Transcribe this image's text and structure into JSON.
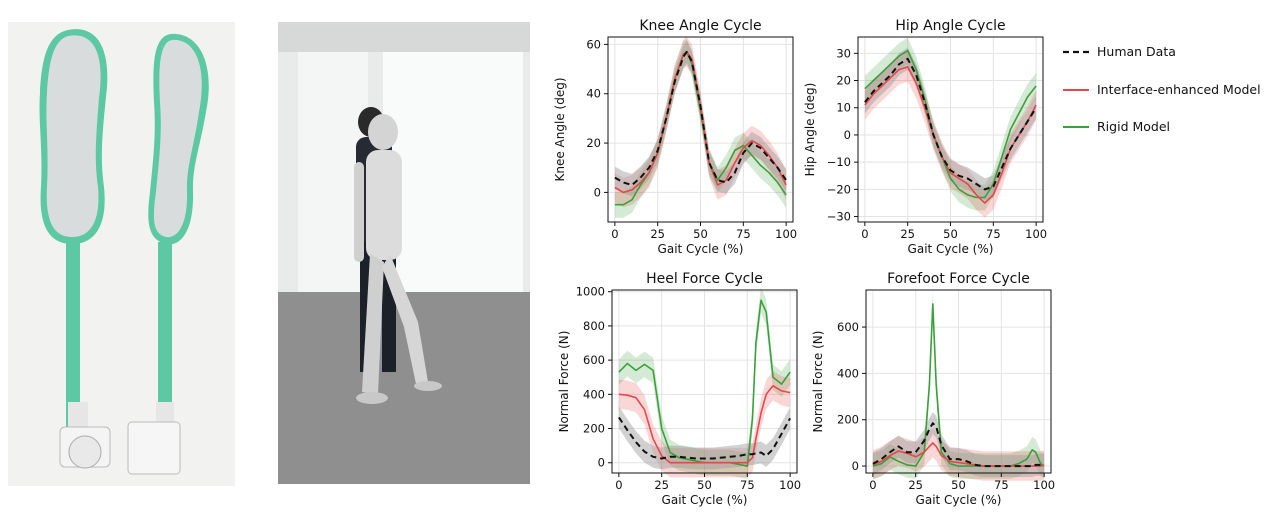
{
  "legend": {
    "entries": [
      {
        "label": "Human Data",
        "color": "#111111",
        "dash": true
      },
      {
        "label": "Interface-enhanced Model",
        "color": "#e8474a",
        "dash": false
      },
      {
        "label": "Rigid Model",
        "color": "#3aa13a",
        "dash": false
      }
    ]
  },
  "photos": {
    "insoles": "Pressure-sensing insoles",
    "walking": "Human walking with overlaid musculoskeletal model"
  },
  "chart_data": [
    {
      "type": "line",
      "title": "Knee Angle Cycle",
      "xlabel": "Gait Cycle (%)",
      "ylabel": "Knee Angle (deg)",
      "xlim": [
        -4,
        104
      ],
      "ylim": [
        -12,
        63
      ],
      "xticks": [
        0,
        25,
        50,
        75,
        100
      ],
      "yticks": [
        0,
        20,
        40,
        60
      ],
      "x": [
        0,
        5,
        10,
        15,
        20,
        25,
        30,
        35,
        40,
        42,
        45,
        50,
        55,
        60,
        65,
        70,
        75,
        80,
        85,
        90,
        95,
        100
      ],
      "series": [
        {
          "name": "Human Data",
          "values": [
            6,
            4,
            3,
            6,
            10,
            17,
            30,
            45,
            55,
            57,
            53,
            35,
            12,
            5,
            4,
            8,
            16,
            20,
            18,
            14,
            10,
            5
          ]
        },
        {
          "name": "Interface-enhanced Model",
          "values": [
            2,
            0,
            1,
            4,
            8,
            16,
            30,
            46,
            56,
            57,
            54,
            35,
            12,
            3,
            5,
            12,
            18,
            21,
            19,
            15,
            10,
            3
          ]
        },
        {
          "name": "Rigid Model",
          "values": [
            -5,
            -5,
            -3,
            3,
            8,
            16,
            30,
            46,
            56,
            57,
            52,
            33,
            12,
            5,
            10,
            17,
            19,
            15,
            11,
            8,
            4,
            -1
          ]
        }
      ]
    },
    {
      "type": "line",
      "title": "Hip Angle Cycle",
      "xlabel": "Gait Cycle (%)",
      "ylabel": "Hip Angle (deg)",
      "xlim": [
        -4,
        104
      ],
      "ylim": [
        -32,
        36
      ],
      "xticks": [
        0,
        25,
        50,
        75,
        100
      ],
      "yticks": [
        -30,
        -20,
        -10,
        0,
        10,
        20,
        30
      ],
      "x": [
        0,
        5,
        10,
        15,
        20,
        25,
        30,
        35,
        40,
        45,
        50,
        55,
        60,
        65,
        70,
        75,
        80,
        85,
        90,
        95,
        100
      ],
      "series": [
        {
          "name": "Human Data",
          "values": [
            12,
            16,
            19,
            22,
            26,
            28,
            22,
            12,
            0,
            -8,
            -13,
            -15,
            -16,
            -18,
            -20,
            -19,
            -12,
            -5,
            0,
            5,
            10
          ]
        },
        {
          "name": "Interface-enhanced Model",
          "values": [
            11,
            15,
            18,
            21,
            24,
            25,
            19,
            10,
            0,
            -8,
            -14,
            -16,
            -18,
            -22,
            -25,
            -22,
            -14,
            -5,
            0,
            5,
            11
          ]
        },
        {
          "name": "Rigid Model",
          "values": [
            17,
            20,
            23,
            26,
            29,
            31,
            24,
            13,
            0,
            -8,
            -16,
            -20,
            -22,
            -23,
            -23,
            -18,
            -8,
            2,
            8,
            14,
            18
          ]
        }
      ]
    },
    {
      "type": "line",
      "title": "Heel Force Cycle",
      "xlabel": "Gait Cycle (%)",
      "ylabel": "Normal Force (N)",
      "xlim": [
        -4,
        104
      ],
      "ylim": [
        -60,
        1010
      ],
      "xticks": [
        0,
        25,
        50,
        75,
        100
      ],
      "yticks": [
        0,
        200,
        400,
        600,
        800,
        1000
      ],
      "x": [
        0,
        5,
        10,
        15,
        20,
        25,
        30,
        35,
        40,
        45,
        50,
        55,
        60,
        65,
        70,
        75,
        78,
        80,
        83,
        86,
        90,
        95,
        100
      ],
      "series": [
        {
          "name": "Human Data",
          "values": [
            265,
            190,
            120,
            65,
            35,
            25,
            35,
            35,
            30,
            25,
            25,
            25,
            30,
            35,
            40,
            50,
            50,
            55,
            60,
            40,
            80,
            170,
            260
          ]
        },
        {
          "name": "Interface-enhanced Model",
          "values": [
            400,
            395,
            380,
            310,
            140,
            40,
            0,
            0,
            0,
            0,
            0,
            0,
            0,
            0,
            0,
            0,
            30,
            140,
            290,
            400,
            450,
            420,
            410
          ]
        },
        {
          "name": "Rigid Model",
          "values": [
            530,
            580,
            540,
            575,
            540,
            200,
            60,
            30,
            20,
            10,
            0,
            0,
            0,
            0,
            -10,
            -20,
            260,
            700,
            950,
            880,
            500,
            460,
            530
          ]
        }
      ]
    },
    {
      "type": "line",
      "title": "Forefoot Force Cycle",
      "xlabel": "Gait Cycle (%)",
      "ylabel": "Normal Force (N)",
      "xlim": [
        -4,
        104
      ],
      "ylim": [
        -30,
        760
      ],
      "xticks": [
        0,
        25,
        50,
        75,
        100
      ],
      "yticks": [
        0,
        200,
        400,
        600
      ],
      "x": [
        0,
        5,
        10,
        15,
        20,
        25,
        30,
        33,
        35,
        37,
        40,
        45,
        50,
        55,
        60,
        65,
        70,
        75,
        80,
        85,
        90,
        93,
        95,
        98,
        100
      ],
      "series": [
        {
          "name": "Human Data",
          "values": [
            10,
            30,
            60,
            85,
            60,
            60,
            110,
            160,
            185,
            170,
            90,
            30,
            30,
            20,
            5,
            0,
            0,
            0,
            0,
            0,
            0,
            0,
            5,
            5,
            5
          ]
        },
        {
          "name": "Interface-enhanced Model",
          "values": [
            5,
            20,
            45,
            65,
            55,
            40,
            60,
            85,
            100,
            85,
            45,
            20,
            15,
            10,
            5,
            0,
            0,
            0,
            0,
            0,
            0,
            0,
            0,
            0,
            5
          ]
        },
        {
          "name": "Rigid Model",
          "values": [
            0,
            10,
            40,
            20,
            5,
            0,
            60,
            350,
            700,
            350,
            60,
            10,
            0,
            0,
            0,
            0,
            0,
            0,
            0,
            10,
            30,
            70,
            60,
            10,
            0
          ]
        }
      ]
    }
  ]
}
